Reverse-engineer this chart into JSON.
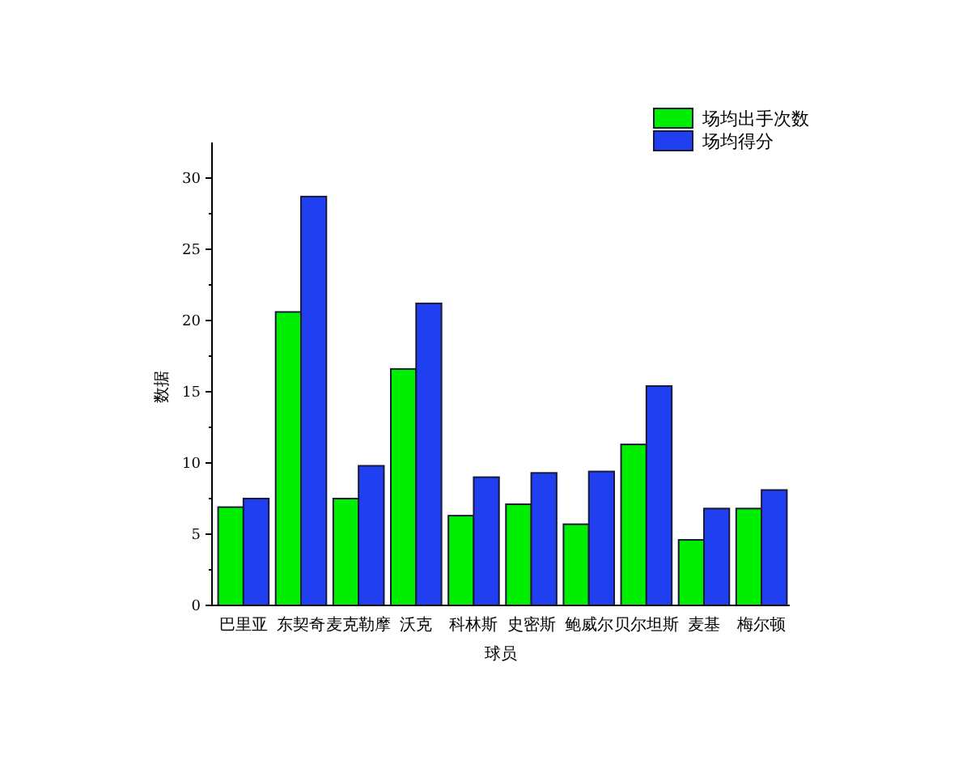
{
  "chart_data": {
    "type": "bar",
    "xlabel": "球员",
    "ylabel": "数据",
    "categories": [
      "巴里亚",
      "东契奇",
      "麦克勒摩",
      "沃克",
      "科林斯",
      "史密斯",
      "鲍威尔",
      "贝尔坦斯",
      "麦基",
      "梅尔顿"
    ],
    "series": [
      {
        "name": "场均出手次数",
        "color": "#00ee00",
        "values": [
          6.9,
          20.6,
          7.5,
          16.6,
          6.3,
          7.1,
          5.7,
          11.3,
          4.6,
          6.8
        ]
      },
      {
        "name": "场均得分",
        "color": "#1f3ff0",
        "values": [
          7.5,
          28.7,
          9.8,
          21.2,
          9.0,
          9.3,
          9.4,
          15.4,
          6.8,
          8.1
        ]
      }
    ],
    "ylim": [
      0,
      32.5
    ],
    "yticks": [
      0,
      5,
      10,
      15,
      20,
      25,
      30
    ],
    "grid": false,
    "legend": "top right"
  }
}
